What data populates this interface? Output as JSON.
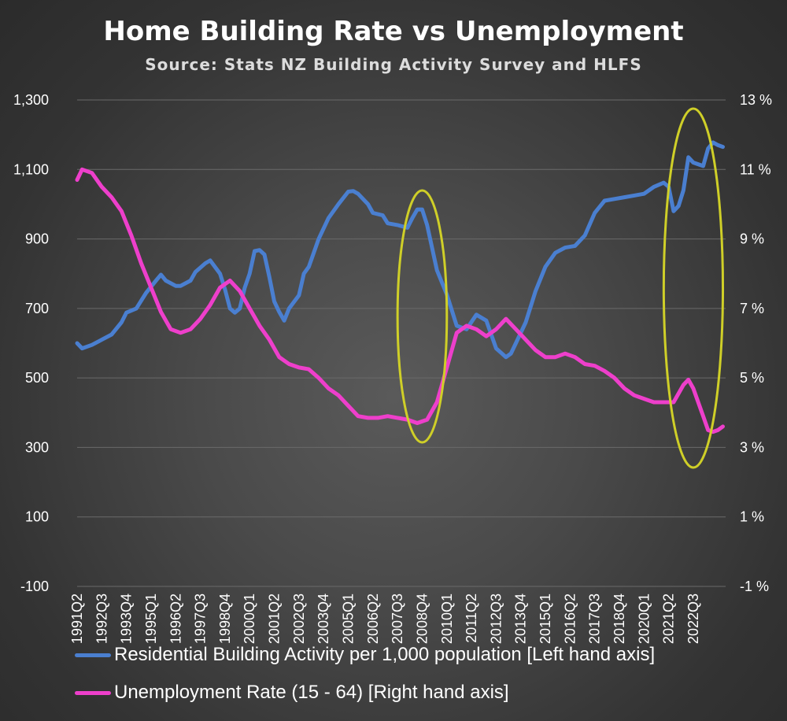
{
  "colors": {
    "building": "#4a7fd0",
    "unemployment": "#ee3fcb",
    "ellipse": "#cfcf28",
    "grid": "#6a6a6a"
  },
  "chart_data": {
    "type": "line",
    "title": "Home Building Rate vs Unemployment",
    "subtitle": "Source: Stats NZ Building Activity Survey and HLFS",
    "x_tick_labels": [
      "1991Q2",
      "1992Q3",
      "1993Q4",
      "1995Q1",
      "1996Q2",
      "1997Q3",
      "1998Q4",
      "2000Q1",
      "2001Q2",
      "2002Q3",
      "2003Q4",
      "2005Q1",
      "2006Q2",
      "2007Q3",
      "2008Q4",
      "2010Q1",
      "2011Q2",
      "2012Q3",
      "2013Q4",
      "2015Q1",
      "2016Q2",
      "2017Q3",
      "2018Q4",
      "2020Q1",
      "2021Q2",
      "2022Q3"
    ],
    "x_range": [
      "1991Q2",
      "2023Q3"
    ],
    "y_left": {
      "ticks": [
        "1,300",
        "1,100",
        "900",
        "700",
        "500",
        "300",
        "100",
        "-100"
      ],
      "range": [
        -100,
        1300
      ]
    },
    "y_right": {
      "ticks": [
        "13 %",
        "11 %",
        "9 %",
        "7 %",
        "5 %",
        "3 %",
        "1 %",
        "-1 %"
      ],
      "range": [
        -1,
        13
      ]
    },
    "grid": true,
    "legend_position": "bottom",
    "series": [
      {
        "name": "Residential Building Activity per 1,000 population [Left hand axis]",
        "axis": "left",
        "points": [
          [
            "1991Q2",
            600
          ],
          [
            "1991Q3",
            585
          ],
          [
            "1992Q1",
            595
          ],
          [
            "1992Q3",
            610
          ],
          [
            "1993Q1",
            625
          ],
          [
            "1993Q3",
            660
          ],
          [
            "1993Q4",
            688
          ],
          [
            "1994Q2",
            700
          ],
          [
            "1994Q4",
            745
          ],
          [
            "1995Q2",
            780
          ],
          [
            "1995Q3",
            797
          ],
          [
            "1995Q4",
            780
          ],
          [
            "1996Q2",
            765
          ],
          [
            "1996Q3",
            765
          ],
          [
            "1997Q1",
            780
          ],
          [
            "1997Q2",
            805
          ],
          [
            "1997Q4",
            830
          ],
          [
            "1998Q1",
            838
          ],
          [
            "1998Q3",
            800
          ],
          [
            "1998Q4",
            755
          ],
          [
            "1999Q1",
            700
          ],
          [
            "1999Q2",
            688
          ],
          [
            "1999Q3",
            700
          ],
          [
            "1999Q4",
            760
          ],
          [
            "2000Q1",
            800
          ],
          [
            "2000Q2",
            865
          ],
          [
            "2000Q3",
            868
          ],
          [
            "2000Q4",
            855
          ],
          [
            "2001Q1",
            790
          ],
          [
            "2001Q2",
            720
          ],
          [
            "2001Q3",
            690
          ],
          [
            "2001Q4",
            665
          ],
          [
            "2002Q1",
            700
          ],
          [
            "2002Q3",
            738
          ],
          [
            "2002Q4",
            800
          ],
          [
            "2003Q1",
            820
          ],
          [
            "2003Q3",
            900
          ],
          [
            "2004Q1",
            960
          ],
          [
            "2004Q3",
            1000
          ],
          [
            "2005Q1",
            1036
          ],
          [
            "2005Q2",
            1038
          ],
          [
            "2005Q3",
            1030
          ],
          [
            "2006Q1",
            1000
          ],
          [
            "2006Q2",
            975
          ],
          [
            "2006Q4",
            968
          ],
          [
            "2007Q1",
            945
          ],
          [
            "2007Q3",
            940
          ],
          [
            "2008Q1",
            932
          ],
          [
            "2008Q2",
            960
          ],
          [
            "2008Q3",
            985
          ],
          [
            "2008Q4",
            985
          ],
          [
            "2009Q1",
            940
          ],
          [
            "2009Q3",
            810
          ],
          [
            "2010Q1",
            740
          ],
          [
            "2010Q3",
            650
          ],
          [
            "2011Q1",
            640
          ],
          [
            "2011Q3",
            682
          ],
          [
            "2012Q1",
            665
          ],
          [
            "2012Q3",
            585
          ],
          [
            "2013Q1",
            560
          ],
          [
            "2013Q2",
            570
          ],
          [
            "2013Q3",
            600
          ],
          [
            "2014Q1",
            660
          ],
          [
            "2014Q3",
            750
          ],
          [
            "2015Q1",
            820
          ],
          [
            "2015Q3",
            860
          ],
          [
            "2016Q1",
            875
          ],
          [
            "2016Q3",
            880
          ],
          [
            "2017Q1",
            910
          ],
          [
            "2017Q3",
            975
          ],
          [
            "2018Q1",
            1010
          ],
          [
            "2018Q3",
            1015
          ],
          [
            "2019Q1",
            1020
          ],
          [
            "2019Q3",
            1025
          ],
          [
            "2020Q1",
            1030
          ],
          [
            "2020Q3",
            1050
          ],
          [
            "2021Q1",
            1062
          ],
          [
            "2021Q2",
            1050
          ],
          [
            "2021Q3",
            980
          ],
          [
            "2021Q4",
            995
          ],
          [
            "2022Q1",
            1040
          ],
          [
            "2022Q2",
            1135
          ],
          [
            "2022Q3",
            1120
          ],
          [
            "2023Q1",
            1110
          ],
          [
            "2023Q2",
            1160
          ],
          [
            "2023Q3",
            1178
          ],
          [
            "2023Q4",
            1170
          ],
          [
            "2024Q1",
            1165
          ]
        ]
      },
      {
        "name": "Unemployment Rate (15 - 64) [Right hand axis]",
        "axis": "right",
        "points": [
          [
            "1991Q2",
            10.7
          ],
          [
            "1991Q3",
            11.0
          ],
          [
            "1992Q1",
            10.9
          ],
          [
            "1992Q3",
            10.5
          ],
          [
            "1993Q1",
            10.2
          ],
          [
            "1993Q3",
            9.8
          ],
          [
            "1994Q1",
            9.1
          ],
          [
            "1994Q3",
            8.3
          ],
          [
            "1995Q1",
            7.6
          ],
          [
            "1995Q3",
            6.9
          ],
          [
            "1996Q1",
            6.4
          ],
          [
            "1996Q3",
            6.3
          ],
          [
            "1997Q1",
            6.4
          ],
          [
            "1997Q3",
            6.7
          ],
          [
            "1998Q1",
            7.1
          ],
          [
            "1998Q3",
            7.6
          ],
          [
            "1999Q1",
            7.8
          ],
          [
            "1999Q3",
            7.5
          ],
          [
            "2000Q1",
            7.0
          ],
          [
            "2000Q3",
            6.5
          ],
          [
            "2001Q1",
            6.1
          ],
          [
            "2001Q3",
            5.6
          ],
          [
            "2002Q1",
            5.4
          ],
          [
            "2002Q3",
            5.3
          ],
          [
            "2003Q1",
            5.25
          ],
          [
            "2003Q3",
            5.0
          ],
          [
            "2004Q1",
            4.7
          ],
          [
            "2004Q3",
            4.5
          ],
          [
            "2005Q1",
            4.2
          ],
          [
            "2005Q3",
            3.9
          ],
          [
            "2006Q1",
            3.85
          ],
          [
            "2006Q3",
            3.85
          ],
          [
            "2007Q1",
            3.9
          ],
          [
            "2007Q3",
            3.85
          ],
          [
            "2008Q1",
            3.8
          ],
          [
            "2008Q3",
            3.7
          ],
          [
            "2009Q1",
            3.8
          ],
          [
            "2009Q3",
            4.3
          ],
          [
            "2010Q1",
            5.3
          ],
          [
            "2010Q3",
            6.3
          ],
          [
            "2011Q1",
            6.5
          ],
          [
            "2011Q3",
            6.4
          ],
          [
            "2012Q1",
            6.2
          ],
          [
            "2012Q3",
            6.4
          ],
          [
            "2013Q1",
            6.7
          ],
          [
            "2013Q3",
            6.4
          ],
          [
            "2014Q1",
            6.1
          ],
          [
            "2014Q3",
            5.8
          ],
          [
            "2015Q1",
            5.6
          ],
          [
            "2015Q3",
            5.6
          ],
          [
            "2016Q1",
            5.7
          ],
          [
            "2016Q3",
            5.6
          ],
          [
            "2017Q1",
            5.4
          ],
          [
            "2017Q3",
            5.35
          ],
          [
            "2018Q1",
            5.2
          ],
          [
            "2018Q3",
            5.0
          ],
          [
            "2019Q1",
            4.7
          ],
          [
            "2019Q3",
            4.5
          ],
          [
            "2020Q1",
            4.4
          ],
          [
            "2020Q3",
            4.3
          ],
          [
            "2021Q1",
            4.3
          ],
          [
            "2021Q3",
            4.3
          ],
          [
            "2022Q1",
            4.8
          ],
          [
            "2022Q2",
            4.95
          ],
          [
            "2022Q3",
            4.7
          ],
          [
            "2023Q1",
            3.9
          ],
          [
            "2023Q2",
            3.5
          ],
          [
            "2023Q3",
            3.45
          ],
          [
            "2023Q4",
            3.5
          ],
          [
            "2024Q1",
            3.6
          ]
        ]
      }
    ],
    "annotations": [
      {
        "shape": "ellipse",
        "color": "#cfcf28",
        "from": "2007Q3",
        "to": "2010Q1"
      },
      {
        "shape": "ellipse",
        "color": "#cfcf28",
        "from": "2021Q1",
        "to": "2024Q1"
      }
    ]
  }
}
